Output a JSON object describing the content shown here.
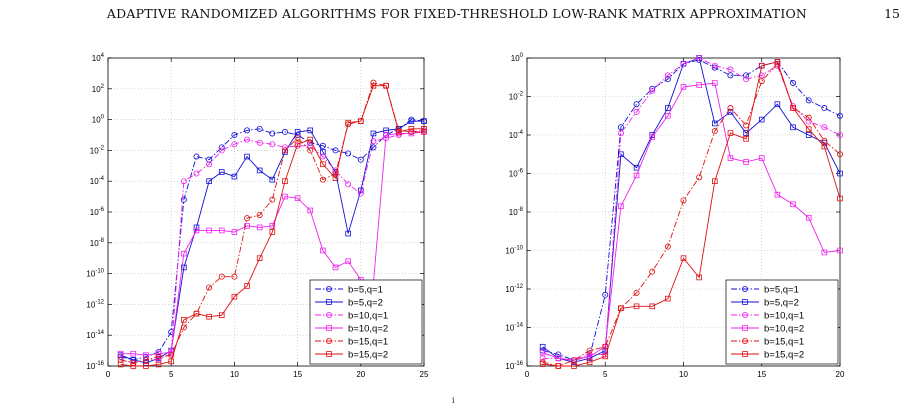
{
  "page": {
    "running_head": "ADAPTIVE RANDOMIZED ALGORITHMS FOR FIXED-THRESHOLD LOW-RANK MATRIX APPROXIMATION",
    "page_number": "15",
    "footnote_mark": "i"
  },
  "colors": {
    "blue": "#1010d8",
    "magenta": "#ee22ee",
    "red": "#dd1111",
    "grid": "#b8b8b8"
  },
  "chart_data": [
    {
      "type": "line",
      "yscale": "log",
      "xlim": [
        0,
        25
      ],
      "ylim_exponent": [
        -16,
        4
      ],
      "xticks": [
        "0",
        "5",
        "10",
        "15",
        "20",
        "25"
      ],
      "yticks": [
        "10^-16",
        "10^-14",
        "10^-12",
        "10^-10",
        "10^-8",
        "10^-6",
        "10^-4",
        "10^-2",
        "10^0",
        "10^2",
        "10^4"
      ],
      "grid": true,
      "legend_position": "lower-right",
      "series": [
        {
          "name": "b=5,q=1",
          "color": "blue",
          "dash": "dashdot",
          "marker": "circle",
          "x": [
            1,
            2,
            3,
            4,
            5,
            6,
            7,
            8,
            9,
            10,
            11,
            12,
            13,
            14,
            15,
            16,
            17,
            18,
            19,
            20,
            21,
            22,
            23,
            24,
            25
          ],
          "log10_y": [
            -15.4,
            -15.6,
            -15.4,
            -15.1,
            -13.8,
            -5.2,
            -2.4,
            -2.6,
            -1.8,
            -1.0,
            -0.7,
            -0.6,
            -0.9,
            -0.8,
            -1.0,
            -1.5,
            -1.7,
            -2.0,
            -2.2,
            -2.6,
            -1.8,
            -1.0,
            -0.6,
            0.0,
            -0.1
          ]
        },
        {
          "name": "b=5,q=2",
          "color": "blue",
          "dash": "solid",
          "marker": "square",
          "x": [
            1,
            2,
            3,
            4,
            5,
            6,
            7,
            8,
            9,
            10,
            11,
            12,
            13,
            14,
            15,
            16,
            17,
            18,
            19,
            20,
            21,
            22,
            23,
            24,
            25
          ],
          "log10_y": [
            -15.3,
            -15.6,
            -15.8,
            -15.5,
            -15.0,
            -9.6,
            -7.0,
            -4.0,
            -3.4,
            -3.7,
            -2.4,
            -3.3,
            -3.9,
            -2.1,
            -0.8,
            -0.7,
            -2.1,
            -3.4,
            -7.4,
            -4.6,
            -0.9,
            -0.7,
            -0.6,
            -0.1,
            -0.1
          ]
        },
        {
          "name": "b=10,q=1",
          "color": "magenta",
          "dash": "dashdot",
          "marker": "circle",
          "x": [
            1,
            2,
            3,
            4,
            5,
            6,
            7,
            8,
            9,
            10,
            11,
            12,
            13,
            14,
            15,
            16,
            17,
            18,
            19,
            20,
            21,
            22,
            23,
            24,
            25
          ],
          "log10_y": [
            -15.6,
            -15.8,
            -15.6,
            -15.6,
            -15.2,
            -4.0,
            -3.5,
            -2.9,
            -2.0,
            -1.6,
            -1.3,
            -1.5,
            -1.6,
            -1.8,
            -1.7,
            -1.7,
            -2.4,
            -3.3,
            -4.2,
            -4.8,
            -1.4,
            -1.2,
            -1.0,
            -0.8,
            -0.7
          ]
        },
        {
          "name": "b=10,q=2",
          "color": "magenta",
          "dash": "solid",
          "marker": "square",
          "x": [
            1,
            2,
            3,
            4,
            5,
            6,
            7,
            8,
            9,
            10,
            11,
            12,
            13,
            14,
            15,
            16,
            17,
            18,
            19,
            20,
            21,
            22,
            23,
            24,
            25
          ],
          "log10_y": [
            -15.2,
            -15.2,
            -15.3,
            -15.2,
            -15.1,
            -8.7,
            -7.2,
            -7.2,
            -7.2,
            -7.3,
            -6.9,
            -7.0,
            -6.9,
            -5.0,
            -5.1,
            -5.9,
            -8.5,
            -9.6,
            -9.2,
            -10.4,
            -10.6,
            -1.0,
            -0.9,
            -0.9,
            -0.8
          ]
        },
        {
          "name": "b=15,q=1",
          "color": "red",
          "dash": "dashdot",
          "marker": "circle",
          "x": [
            1,
            2,
            3,
            4,
            5,
            6,
            7,
            8,
            9,
            10,
            11,
            12,
            13,
            14,
            15,
            16,
            17,
            18,
            19,
            20,
            21,
            22,
            23,
            24,
            25
          ],
          "log10_y": [
            -15.6,
            -15.8,
            -15.6,
            -15.4,
            -15.3,
            -13.5,
            -12.6,
            -10.9,
            -10.2,
            -10.2,
            -6.4,
            -6.2,
            -5.2,
            -2.0,
            -1.2,
            -2.0,
            -3.9,
            -3.5,
            -0.3,
            -0.1,
            2.4,
            2.2,
            -0.7,
            -0.8,
            -0.8
          ]
        },
        {
          "name": "b=15,q=2",
          "color": "red",
          "dash": "solid",
          "marker": "square",
          "x": [
            1,
            2,
            3,
            4,
            5,
            6,
            7,
            8,
            9,
            10,
            11,
            12,
            13,
            14,
            15,
            16,
            17,
            18,
            19,
            20,
            21,
            22,
            23,
            24,
            25
          ],
          "log10_y": [
            -15.9,
            -16.0,
            -16.0,
            -15.9,
            -15.7,
            -13.0,
            -12.6,
            -12.8,
            -12.7,
            -11.5,
            -10.8,
            -9.0,
            -7.3,
            -4.0,
            -1.6,
            -1.3,
            -2.9,
            -3.8,
            -0.2,
            -0.1,
            2.2,
            2.2,
            -0.8,
            -0.6,
            -0.6
          ]
        }
      ]
    },
    {
      "type": "line",
      "yscale": "log",
      "xlim": [
        0,
        20
      ],
      "ylim_exponent": [
        -16,
        0
      ],
      "xticks": [
        "0",
        "5",
        "10",
        "15",
        "20"
      ],
      "yticks": [
        "10^-16",
        "10^-14",
        "10^-12",
        "10^-10",
        "10^-8",
        "10^-6",
        "10^-4",
        "10^-2",
        "10^0"
      ],
      "grid": true,
      "legend_position": "lower-right",
      "series": [
        {
          "name": "b=5,q=1",
          "color": "blue",
          "dash": "dashdot",
          "marker": "circle",
          "x": [
            1,
            2,
            3,
            4,
            5,
            6,
            7,
            8,
            9,
            10,
            11,
            12,
            13,
            14,
            15,
            16,
            17,
            18,
            19,
            20
          ],
          "log10_y": [
            -15.2,
            -15.4,
            -15.7,
            -15.5,
            -12.3,
            -3.6,
            -2.4,
            -1.6,
            -1.1,
            -0.3,
            -0.1,
            -0.5,
            -0.9,
            -0.9,
            -0.4,
            -0.2,
            -1.3,
            -2.2,
            -2.6,
            -3.0
          ]
        },
        {
          "name": "b=5,q=2",
          "color": "blue",
          "dash": "solid",
          "marker": "square",
          "x": [
            1,
            2,
            3,
            4,
            5,
            6,
            7,
            8,
            9,
            10,
            11,
            12,
            13,
            14,
            15,
            16,
            17,
            18,
            19,
            20
          ],
          "log10_y": [
            -15.0,
            -15.6,
            -15.8,
            -15.6,
            -15.2,
            -5.0,
            -5.7,
            -4.0,
            -2.6,
            -0.3,
            0.0,
            -3.4,
            -2.8,
            -3.9,
            -3.2,
            -2.4,
            -3.6,
            -4.0,
            -4.4,
            -6.0
          ]
        },
        {
          "name": "b=10,q=1",
          "color": "magenta",
          "dash": "dashdot",
          "marker": "circle",
          "x": [
            1,
            2,
            3,
            4,
            5,
            6,
            7,
            8,
            9,
            10,
            11,
            12,
            13,
            14,
            15,
            16,
            17,
            18,
            19,
            20
          ],
          "log10_y": [
            -15.6,
            -15.6,
            -15.7,
            -15.4,
            -15.4,
            -3.9,
            -2.8,
            -1.7,
            -0.9,
            -0.3,
            0.0,
            -0.4,
            -0.6,
            -1.1,
            -0.9,
            -0.4,
            -2.5,
            -3.3,
            -3.6,
            -4.0
          ]
        },
        {
          "name": "b=10,q=2",
          "color": "magenta",
          "dash": "solid",
          "marker": "square",
          "x": [
            1,
            2,
            3,
            4,
            5,
            6,
            7,
            8,
            9,
            10,
            11,
            12,
            13,
            14,
            15,
            16,
            17,
            18,
            19,
            20
          ],
          "log10_y": [
            -15.3,
            -15.6,
            -15.7,
            -15.5,
            -15.0,
            -7.7,
            -6.1,
            -4.1,
            -3.0,
            -1.5,
            -1.4,
            -1.3,
            -5.2,
            -5.4,
            -5.2,
            -7.1,
            -7.6,
            -8.3,
            -10.1,
            -10.0
          ]
        },
        {
          "name": "b=15,q=1",
          "color": "red",
          "dash": "dashdot",
          "marker": "circle",
          "x": [
            1,
            2,
            3,
            4,
            5,
            6,
            7,
            8,
            9,
            10,
            11,
            12,
            13,
            14,
            15,
            16,
            17,
            18,
            19,
            20
          ],
          "log10_y": [
            -15.8,
            -16.0,
            -15.7,
            -15.2,
            -15.0,
            -13.0,
            -12.2,
            -11.1,
            -9.8,
            -7.4,
            -6.2,
            -3.8,
            -2.6,
            -3.5,
            -1.2,
            -0.3,
            -2.6,
            -3.1,
            -4.3,
            -5.0
          ]
        },
        {
          "name": "b=15,q=2",
          "color": "red",
          "dash": "solid",
          "marker": "square",
          "x": [
            1,
            2,
            3,
            4,
            5,
            6,
            7,
            8,
            9,
            10,
            11,
            12,
            13,
            14,
            15,
            16,
            17,
            18,
            19,
            20
          ],
          "log10_y": [
            -15.9,
            -16.0,
            -16.0,
            -15.8,
            -15.5,
            -13.0,
            -12.9,
            -12.9,
            -12.5,
            -10.4,
            -11.4,
            -6.4,
            -3.9,
            -4.2,
            -0.4,
            -0.2,
            -2.6,
            -3.7,
            -4.6,
            -7.3
          ]
        }
      ]
    }
  ]
}
